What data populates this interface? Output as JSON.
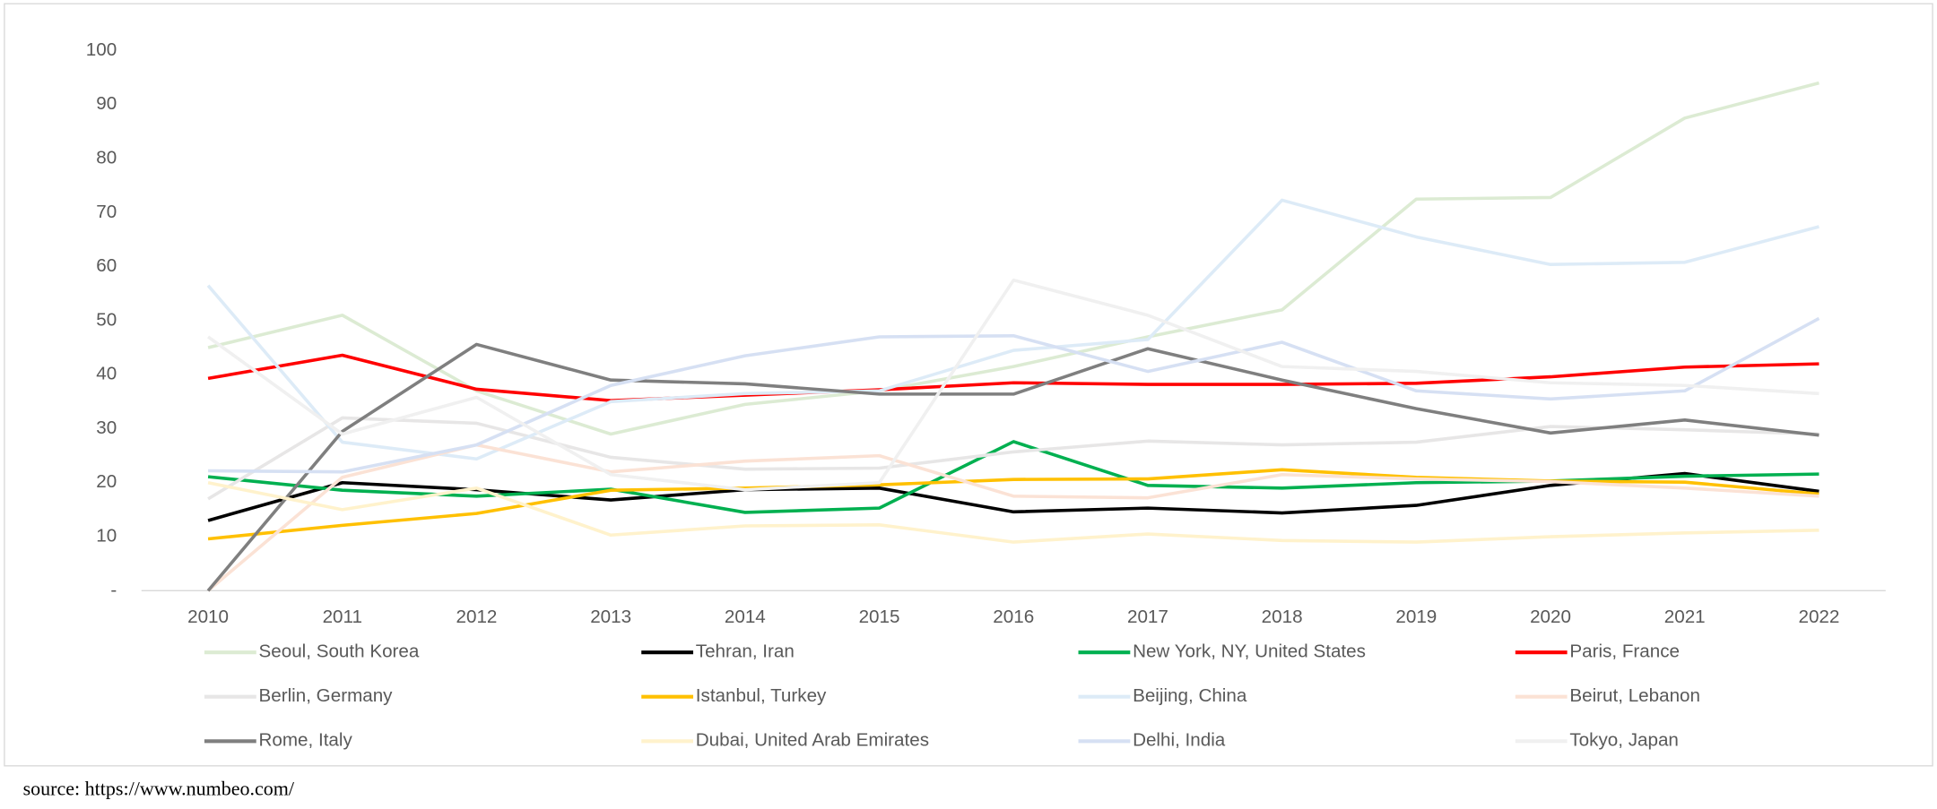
{
  "chart_data": {
    "type": "line",
    "categories": [
      "2010",
      "2011",
      "2012",
      "2013",
      "2014",
      "2015",
      "2016",
      "2017",
      "2018",
      "2019",
      "2020",
      "2021",
      "2022"
    ],
    "ylim": [
      0,
      100
    ],
    "yticks": [
      {
        "value": 0,
        "label": "-"
      },
      10,
      20,
      30,
      40,
      50,
      60,
      70,
      80,
      90,
      100
    ],
    "series": [
      {
        "name": "Seoul, South Korea",
        "color": "#dcebd3",
        "values": [
          45,
          51,
          37,
          29,
          34.5,
          37,
          41.5,
          47,
          52,
          72.5,
          72.8,
          87.5,
          94
        ]
      },
      {
        "name": "Tehran, Iran",
        "color": "#000000",
        "values": [
          13,
          20,
          18.7,
          16.8,
          18.7,
          19,
          14.6,
          15.3,
          14.4,
          15.8,
          19.5,
          21.7,
          18.4
        ]
      },
      {
        "name": "New York, NY, United States",
        "color": "#00b050",
        "values": [
          21.1,
          18.6,
          17.5,
          18.8,
          14.5,
          15.3,
          27.6,
          19.5,
          19,
          20,
          20.3,
          21.2,
          21.6
        ]
      },
      {
        "name": "Paris, France",
        "color": "#ff0000",
        "values": [
          39.3,
          43.6,
          37.3,
          35.2,
          36.2,
          37.2,
          38.5,
          38.2,
          38.2,
          38.4,
          39.6,
          41.4,
          42
        ]
      },
      {
        "name": "Berlin, Germany",
        "color": "#e7e6e6",
        "values": [
          17,
          32,
          31,
          24.7,
          22.5,
          22.7,
          25.7,
          27.7,
          27,
          27.5,
          30.4,
          29.8,
          29
        ]
      },
      {
        "name": "Istanbul, Turkey",
        "color": "#ffc000",
        "values": [
          9.6,
          12.1,
          14.3,
          18.6,
          19,
          19.6,
          20.6,
          20.7,
          22.4,
          21,
          20.3,
          20.1,
          17.9
        ]
      },
      {
        "name": "Beijing, China",
        "color": "#ddebf7",
        "values": [
          56.5,
          27.5,
          24.4,
          35,
          36.5,
          37,
          44.5,
          46.5,
          72.3,
          65.5,
          60.4,
          60.8,
          67.4
        ]
      },
      {
        "name": "Beirut, Lebanon",
        "color": "#fbe2d5",
        "values": [
          0,
          21,
          27,
          22,
          24,
          25,
          17.5,
          17.2,
          21.5,
          20.7,
          20.2,
          19,
          17.5
        ]
      },
      {
        "name": "Rome, Italy",
        "color": "#7f7f7f",
        "values": [
          0,
          29.5,
          45.6,
          39,
          38.3,
          36.4,
          36.4,
          44.8,
          39,
          33.7,
          29.2,
          31.6,
          28.8
        ]
      },
      {
        "name": "Dubai, United Arab Emirates",
        "color": "#fff2cc",
        "values": [
          20,
          15,
          19,
          10.3,
          12,
          12.2,
          9,
          10.5,
          9.3,
          9,
          10,
          10.7,
          11.2
        ]
      },
      {
        "name": "Delhi, India",
        "color": "#d6e0f3",
        "values": [
          22.2,
          22,
          27,
          38,
          43.5,
          47,
          47.2,
          40.6,
          46,
          37,
          35.5,
          37,
          50.4
        ]
      },
      {
        "name": "Tokyo, Japan",
        "color": "#f0f0f0",
        "values": [
          47,
          29,
          35.8,
          21.5,
          18.7,
          20,
          57.5,
          51,
          41.5,
          40.6,
          38.5,
          38,
          36.5
        ]
      }
    ],
    "source": "source: https://www.numbeo.com/"
  }
}
